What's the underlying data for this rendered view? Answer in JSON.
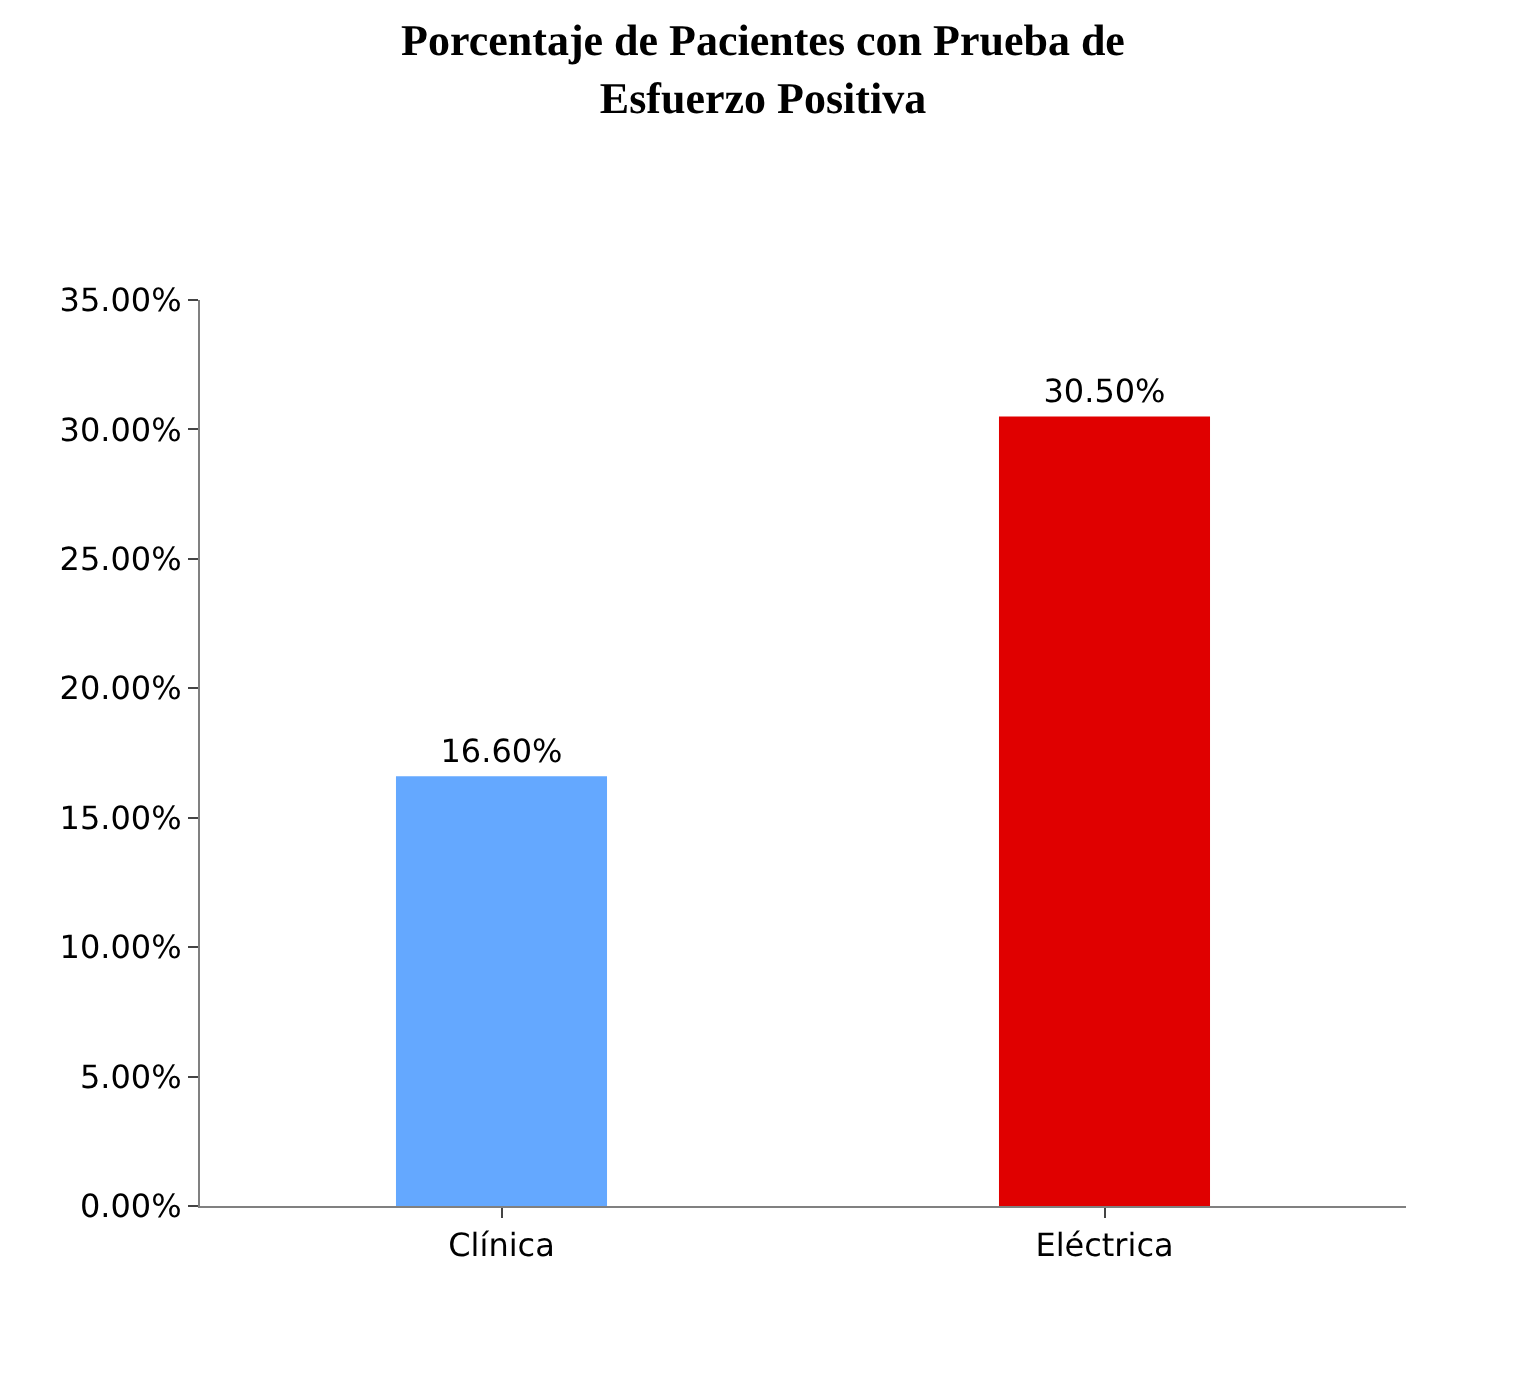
{
  "chart_data": {
    "type": "bar",
    "title": "Porcentaje de Pacientes con Prueba de\nEsfuerzo Positiva",
    "categories": [
      "Clínica",
      "Eléctrica"
    ],
    "values": [
      16.6,
      30.5
    ],
    "colors": [
      "#64a8ff",
      "#e00000"
    ],
    "value_labels": [
      "16.60%",
      "30.50%"
    ],
    "ylim": [
      0,
      35
    ],
    "yticks": [
      {
        "value": 0,
        "label": "0.00%"
      },
      {
        "value": 5,
        "label": "5.00%"
      },
      {
        "value": 10,
        "label": "10.00%"
      },
      {
        "value": 15,
        "label": "15.00%"
      },
      {
        "value": 20,
        "label": "20.00%"
      },
      {
        "value": 25,
        "label": "25.00%"
      },
      {
        "value": 30,
        "label": "30.00%"
      },
      {
        "value": 35,
        "label": "35.00%"
      }
    ],
    "grid": false,
    "legend": false
  }
}
